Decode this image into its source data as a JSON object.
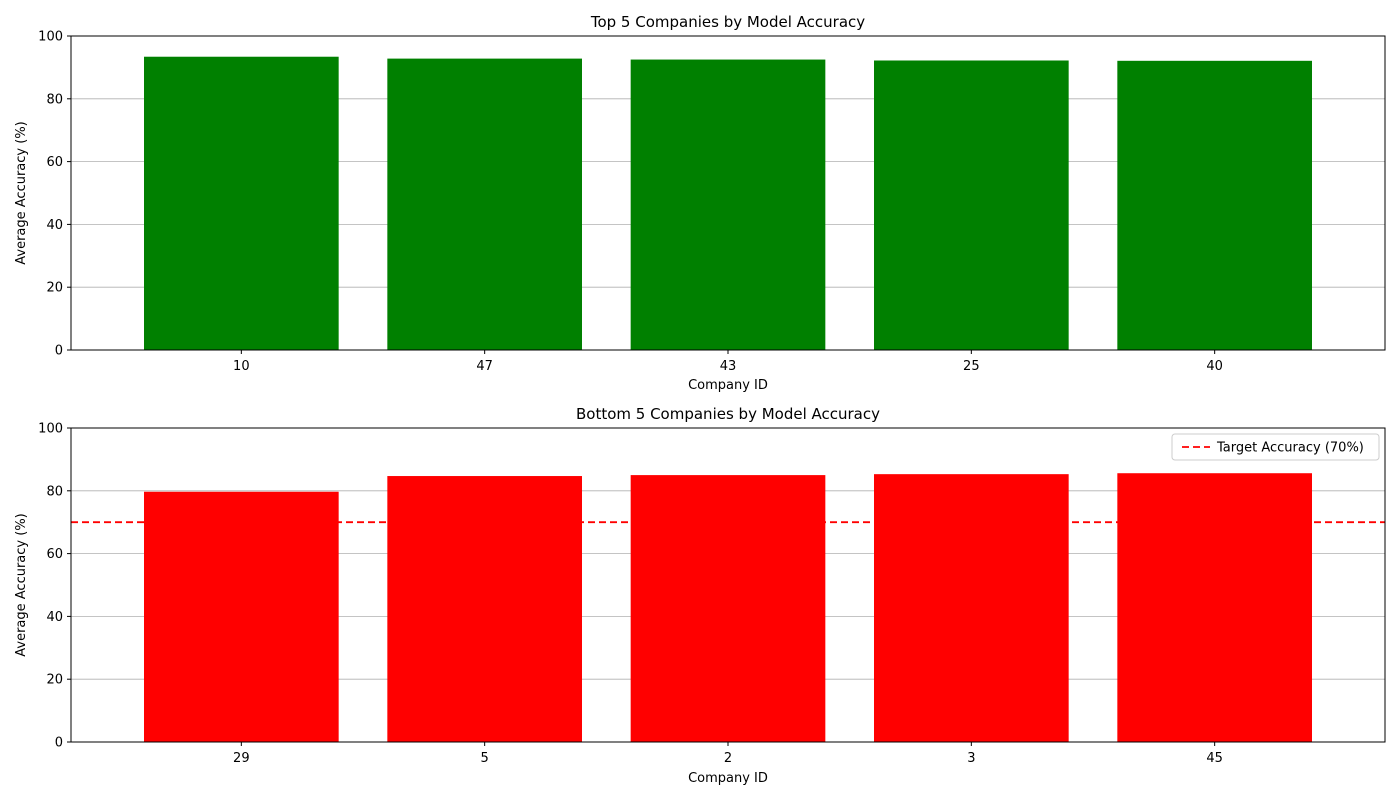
{
  "chart_data": [
    {
      "type": "bar",
      "title": "Top 5 Companies by Model Accuracy",
      "xlabel": "Company ID",
      "ylabel": "Average Accuracy (%)",
      "categories": [
        "10",
        "47",
        "43",
        "25",
        "40"
      ],
      "values": [
        93.4,
        92.8,
        92.5,
        92.2,
        92.1
      ],
      "ylim": [
        0,
        100
      ],
      "yticks": [
        0,
        20,
        40,
        60,
        80,
        100
      ],
      "grid": "y",
      "bar_color": "#008000"
    },
    {
      "type": "bar",
      "title": "Bottom 5 Companies by Model Accuracy",
      "xlabel": "Company ID",
      "ylabel": "Average Accuracy (%)",
      "categories": [
        "29",
        "5",
        "2",
        "3",
        "45"
      ],
      "values": [
        79.7,
        84.7,
        85.0,
        85.3,
        85.6
      ],
      "ylim": [
        0,
        100
      ],
      "yticks": [
        0,
        20,
        40,
        60,
        80,
        100
      ],
      "grid": "y",
      "bar_color": "#ff0000",
      "reference_line": {
        "y": 70,
        "label": "Target Accuracy (70%)",
        "color": "#ff0000",
        "style": "dashed"
      },
      "legend": {
        "position": "upper-right",
        "entries": [
          "Target Accuracy (70%)"
        ]
      }
    }
  ]
}
